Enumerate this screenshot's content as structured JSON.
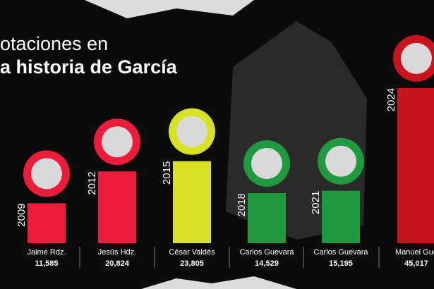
{
  "chart_data": {
    "type": "bar",
    "title_lines": [
      "otaciones en",
      "a historia de García"
    ],
    "categories": [
      "Jaime Rdz.",
      "Jesús Hdz.",
      "César Valdés",
      "Carlos Guevara",
      "Carlos Guevara",
      "Manuel Gue"
    ],
    "years": [
      "2009",
      "2012",
      "2015",
      "2018",
      "2021",
      "2024"
    ],
    "values": [
      11585,
      20824,
      23805,
      14529,
      15195,
      45017
    ],
    "value_labels": [
      "11,585",
      "20,824",
      "23,805",
      "14,529",
      "15,195",
      "45,017"
    ],
    "colors": [
      "#ec1c3a",
      "#ec1c3a",
      "#d7e224",
      "#1f9a3e",
      "#1f9a3e",
      "#c8141e"
    ],
    "ylim": [
      0,
      45000
    ]
  }
}
